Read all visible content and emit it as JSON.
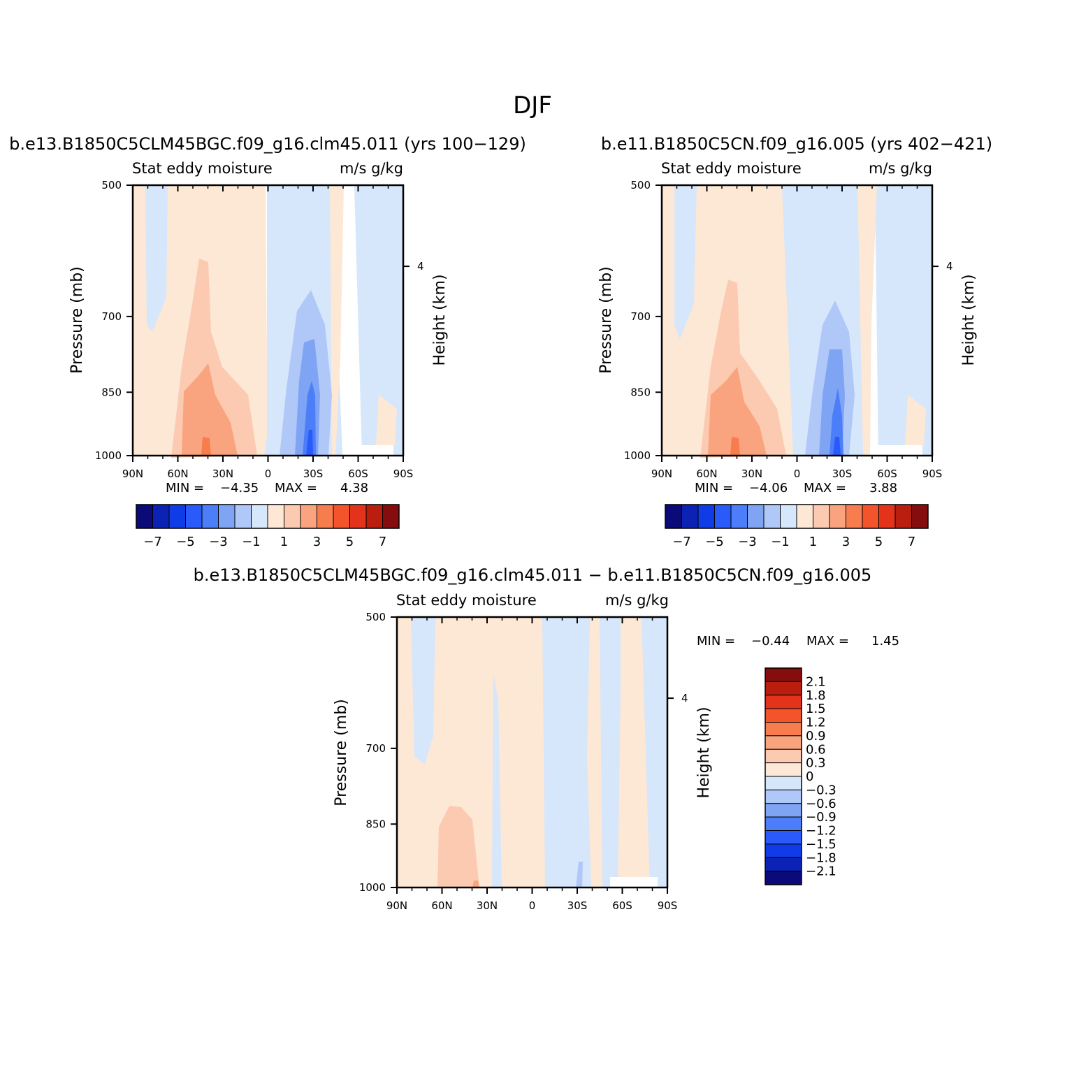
{
  "figure": {
    "title": "DJF",
    "diff_title": "b.e13.B1850C5CLM45BGC.f09_g16.clm45.011  −  b.e11.B1850C5CN.f09_g16.005"
  },
  "chart_data": [
    {
      "type": "heatmap",
      "panel": "case1",
      "title": "b.e13.B1850C5CLM45BGC.f09_g16.clm45.011  (yrs  100−129)",
      "subtitle_left": "Stat  eddy  moisture",
      "subtitle_right": "m/s  g/kg",
      "xlabel": "",
      "ylabel": "Pressure  (mb)",
      "y2label": "Height  (km)",
      "x_ticklabels": [
        "90N",
        "60N",
        "30N",
        "0",
        "30S",
        "60S",
        "90S"
      ],
      "y_ticklabels": [
        "500",
        "700",
        "850",
        "1000"
      ],
      "y2_ticklabels": [
        "4"
      ],
      "min_label": "MIN  =",
      "min_value": "−4.35",
      "max_label": "MAX  =",
      "max_value": "4.38",
      "colorbar_ticks": [
        "−7",
        "−5",
        "−3",
        "−1",
        "1",
        "3",
        "5",
        "7"
      ]
    },
    {
      "type": "heatmap",
      "panel": "case2",
      "title": "b.e11.B1850C5CN.f09_g16.005  (yrs  402−421)",
      "subtitle_left": "Stat  eddy  moisture",
      "subtitle_right": "m/s  g/kg",
      "xlabel": "",
      "ylabel": "Pressure  (mb)",
      "y2label": "Height  (km)",
      "x_ticklabels": [
        "90N",
        "60N",
        "30N",
        "0",
        "30S",
        "60S",
        "90S"
      ],
      "y_ticklabels": [
        "500",
        "700",
        "850",
        "1000"
      ],
      "y2_ticklabels": [
        "4"
      ],
      "min_label": "MIN  =",
      "min_value": "−4.06",
      "max_label": "MAX  =",
      "max_value": "3.88",
      "colorbar_ticks": [
        "−7",
        "−5",
        "−3",
        "−1",
        "1",
        "3",
        "5",
        "7"
      ]
    },
    {
      "type": "heatmap",
      "panel": "difference",
      "subtitle_left": "Stat  eddy  moisture",
      "subtitle_right": "m/s  g/kg",
      "xlabel": "",
      "ylabel": "Pressure  (mb)",
      "y2label": "Height  (km)",
      "x_ticklabels": [
        "90N",
        "60N",
        "30N",
        "0",
        "30S",
        "60S",
        "90S"
      ],
      "y_ticklabels": [
        "500",
        "700",
        "850",
        "1000"
      ],
      "y2_ticklabels": [
        "4"
      ],
      "min_label": "MIN  =",
      "min_value": "−0.44",
      "max_label": "MAX  =",
      "max_value": "1.45",
      "colorbar_ticks": [
        "2.1",
        "1.8",
        "1.5",
        "1.2",
        "0.9",
        "0.6",
        "0.3",
        "0",
        "−0.3",
        "−0.6",
        "−0.9",
        "−1.2",
        "−1.5",
        "−1.8",
        "−2.1"
      ]
    }
  ],
  "colors": {
    "palette": [
      "#0a0a78",
      "#0c22b4",
      "#0f3ce6",
      "#2a5afa",
      "#4b7ef8",
      "#7fa4f4",
      "#afc8f8",
      "#d6e6fb",
      "#fde8d6",
      "#fccab0",
      "#f9a47f",
      "#f77d4f",
      "#f4542c",
      "#e3331a",
      "#b91e0e",
      "#850d0d"
    ],
    "axis": "#000000",
    "background": "#ffffff"
  }
}
